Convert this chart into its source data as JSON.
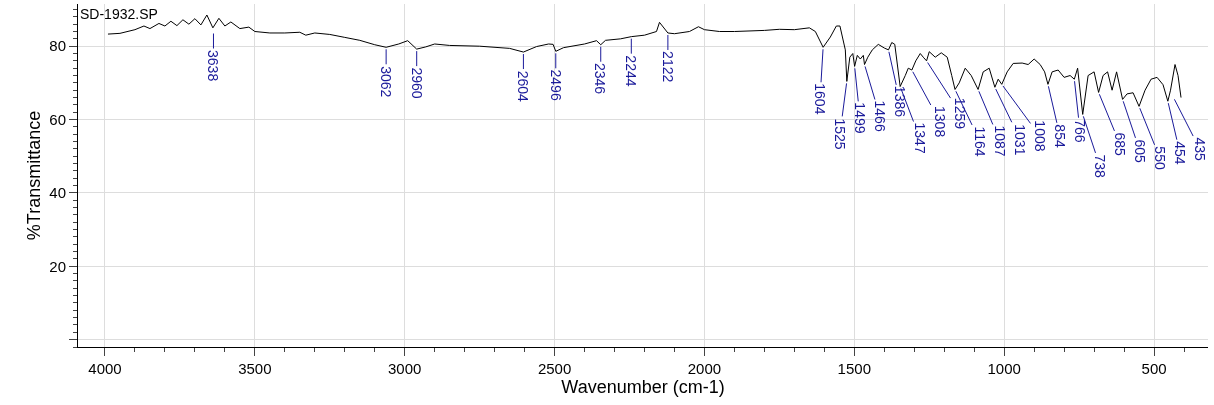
{
  "chart_data": {
    "type": "line",
    "xlabel": "Wavenumber (cm-1)",
    "ylabel": "%Transmittance",
    "x": [
      3990,
      3950,
      3900,
      3870,
      3850,
      3820,
      3800,
      3780,
      3760,
      3740,
      3720,
      3700,
      3680,
      3660,
      3640,
      3620,
      3600,
      3580,
      3550,
      3520,
      3500,
      3450,
      3400,
      3350,
      3330,
      3300,
      3250,
      3200,
      3150,
      3100,
      3062,
      3020,
      2990,
      2960,
      2930,
      2900,
      2850,
      2750,
      2650,
      2604,
      2560,
      2520,
      2505,
      2496,
      2470,
      2400,
      2360,
      2346,
      2330,
      2280,
      2244,
      2200,
      2160,
      2150,
      2122,
      2100,
      2050,
      2020,
      2000,
      1950,
      1900,
      1800,
      1750,
      1700,
      1650,
      1630,
      1604,
      1580,
      1560,
      1548,
      1530,
      1525,
      1515,
      1505,
      1499,
      1490,
      1480,
      1470,
      1466,
      1455,
      1440,
      1420,
      1400,
      1386,
      1375,
      1365,
      1347,
      1330,
      1320,
      1308,
      1295,
      1280,
      1270,
      1259,
      1250,
      1230,
      1210,
      1190,
      1175,
      1164,
      1150,
      1130,
      1110,
      1087,
      1070,
      1050,
      1031,
      1020,
      1008,
      990,
      970,
      940,
      920,
      900,
      880,
      865,
      854,
      840,
      820,
      800,
      780,
      766,
      755,
      738,
      720,
      700,
      685,
      670,
      655,
      640,
      625,
      605,
      590,
      570,
      550,
      530,
      510,
      490,
      470,
      454,
      445,
      430,
      420,
      410
    ],
    "series": [
      {
        "color": "#000000",
        "values": [
          83.3,
          83.5,
          84.5,
          85.5,
          84.8,
          86.2,
          85.5,
          86.8,
          85.6,
          87.2,
          86.0,
          87.5,
          85.8,
          88.5,
          85.0,
          87.6,
          85.5,
          86.6,
          84.8,
          85.2,
          84.0,
          83.6,
          83.6,
          83.8,
          83.0,
          83.6,
          83.2,
          82.4,
          81.6,
          80.4,
          79.7,
          80.6,
          81.5,
          79.2,
          79.8,
          80.6,
          80.2,
          80.0,
          79.4,
          78.4,
          79.9,
          80.6,
          80.5,
          78.6,
          79.6,
          80.6,
          81.5,
          80.4,
          81.6,
          82.0,
          82.6,
          83.0,
          84.0,
          86.5,
          83.6,
          83.4,
          84.0,
          85.3,
          84.5,
          84.0,
          84.0,
          84.3,
          84.6,
          84.5,
          85.0,
          84.0,
          79.7,
          82.5,
          85.5,
          85.5,
          79.0,
          70.4,
          77.0,
          78.0,
          74.5,
          77.5,
          76.5,
          77.5,
          75.0,
          77.0,
          79.0,
          80.5,
          79.5,
          79.0,
          81.0,
          80.5,
          69.0,
          72.0,
          74.0,
          73.5,
          76.0,
          78.0,
          77.0,
          76.0,
          78.5,
          77.0,
          78.2,
          77.0,
          72.0,
          68.2,
          70.0,
          74.0,
          72.0,
          68.2,
          73.0,
          74.0,
          68.8,
          71.0,
          69.6,
          73.0,
          75.3,
          75.4,
          75.0,
          76.5,
          75.0,
          73.0,
          69.6,
          73.0,
          73.5,
          71.5,
          72.0,
          71.0,
          74.0,
          61.4,
          72.0,
          73.0,
          67.4,
          72.0,
          73.0,
          68.0,
          73.0,
          65.5,
          67.0,
          67.3,
          63.6,
          68.0,
          71.0,
          71.5,
          69.5,
          65.0,
          68.0,
          75.0,
          72.0,
          66.0
        ]
      }
    ],
    "xlim": [
      4090,
      320
    ],
    "ylim": [
      -2,
      91.5
    ],
    "xticks": [
      4000,
      3500,
      3000,
      2500,
      2000,
      1500,
      1000,
      500
    ],
    "yticks": [
      {
        "value": 0,
        "label": null
      },
      20,
      40,
      60,
      80
    ],
    "grid": true,
    "annotations": [
      "SD-1932.SP",
      {
        "text": "3638",
        "x": 3638,
        "y": 84.0
      },
      {
        "text": "3062",
        "x": 3062,
        "y": 79.7
      },
      {
        "text": "2960",
        "x": 2960,
        "y": 79.2
      },
      {
        "text": "2604",
        "x": 2604,
        "y": 78.4
      },
      {
        "text": "2496",
        "x": 2496,
        "y": 78.6
      },
      {
        "text": "2346",
        "x": 2346,
        "y": 80.4
      },
      {
        "text": "2244",
        "x": 2244,
        "y": 82.6
      },
      {
        "text": "2122",
        "x": 2122,
        "y": 83.6
      },
      {
        "text": "1604",
        "x": 1604,
        "y": 79.7
      },
      {
        "text": "1525",
        "x": 1525,
        "y": 70.4
      },
      {
        "text": "1499",
        "x": 1499,
        "y": 74.5
      },
      {
        "text": "1466",
        "x": 1466,
        "y": 75.0
      },
      {
        "text": "1386",
        "x": 1386,
        "y": 79.0
      },
      {
        "text": "1347",
        "x": 1347,
        "y": 69.0
      },
      {
        "text": "1308",
        "x": 1308,
        "y": 73.5
      },
      {
        "text": "1259",
        "x": 1259,
        "y": 76.0
      },
      {
        "text": "1164",
        "x": 1164,
        "y": 68.2
      },
      {
        "text": "1087",
        "x": 1087,
        "y": 68.2
      },
      {
        "text": "1031",
        "x": 1031,
        "y": 68.8
      },
      {
        "text": "1008",
        "x": 1008,
        "y": 69.6
      },
      {
        "text": "854",
        "x": 854,
        "y": 69.6
      },
      {
        "text": "766",
        "x": 766,
        "y": 71.0
      },
      {
        "text": "738",
        "x": 738,
        "y": 61.4
      },
      {
        "text": "685",
        "x": 685,
        "y": 67.4
      },
      {
        "text": "605",
        "x": 605,
        "y": 65.5
      },
      {
        "text": "550",
        "x": 550,
        "y": 63.6
      },
      {
        "text": "454",
        "x": 454,
        "y": 65.0
      },
      {
        "text": "435",
        "x": 435,
        "y": 66.0
      }
    ]
  }
}
